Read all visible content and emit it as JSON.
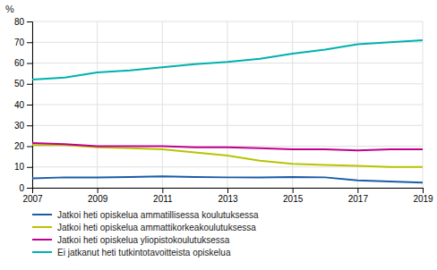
{
  "chart_data": {
    "type": "line",
    "ylabel": "%",
    "x": [
      2007,
      2008,
      2009,
      2010,
      2011,
      2012,
      2013,
      2014,
      2015,
      2016,
      2017,
      2018,
      2019
    ],
    "series": [
      {
        "name": "Jatkoi heti opiskelua ammatillisessa koulutuksessa",
        "color": "#1a5ca8",
        "values": [
          4.5,
          5.0,
          5.0,
          5.2,
          5.5,
          5.2,
          5.0,
          5.0,
          5.2,
          5.0,
          3.5,
          3.0,
          2.5
        ]
      },
      {
        "name": "Jatkoi heti opiskelua ammattikorkeakoulutuksessa",
        "color": "#b8c400",
        "values": [
          20.5,
          20.5,
          19.5,
          19.0,
          18.5,
          17.0,
          15.5,
          13.0,
          11.5,
          11.0,
          10.5,
          10.0,
          10.0
        ]
      },
      {
        "name": "Jatkoi heti opiskelua yliopistokoulutuksessa",
        "color": "#c0008c",
        "values": [
          21.5,
          21.0,
          20.0,
          20.0,
          20.0,
          19.5,
          19.5,
          19.0,
          18.5,
          18.5,
          18.0,
          18.5,
          18.5
        ]
      },
      {
        "name": "Ei jatkanut heti tutkintotavoitteista opiskelua",
        "color": "#00b0b0",
        "values": [
          52.0,
          53.0,
          55.5,
          56.5,
          58.0,
          59.5,
          60.5,
          62.0,
          64.5,
          66.5,
          69.0,
          70.0,
          71.0
        ]
      }
    ],
    "xlim": [
      2007,
      2019
    ],
    "xticks": [
      2007,
      2009,
      2011,
      2013,
      2015,
      2017,
      2019
    ],
    "ylim": [
      0,
      80
    ],
    "yticks": [
      0,
      10,
      20,
      30,
      40,
      50,
      60,
      70,
      80
    ],
    "grid": true,
    "legend": "bottom"
  }
}
